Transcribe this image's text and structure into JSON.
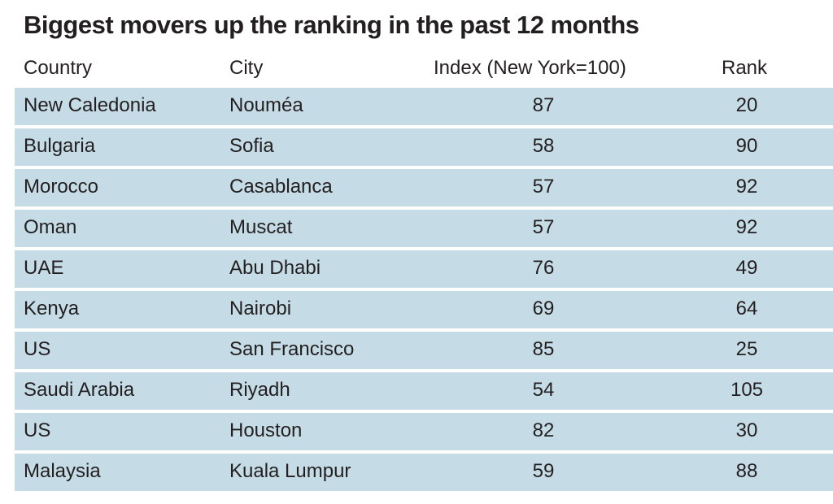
{
  "title": "Biggest movers up the ranking in the past 12 months",
  "columns": {
    "country": "Country",
    "city": "City",
    "index": "Index (New York=100)",
    "rank": "Rank"
  },
  "rows": [
    {
      "country": "New Caledonia",
      "city": "Nouméa",
      "index": "87",
      "rank": "20"
    },
    {
      "country": "Bulgaria",
      "city": "Sofia",
      "index": "58",
      "rank": "90"
    },
    {
      "country": "Morocco",
      "city": "Casablanca",
      "index": "57",
      "rank": "92"
    },
    {
      "country": "Oman",
      "city": "Muscat",
      "index": "57",
      "rank": "92"
    },
    {
      "country": "UAE",
      "city": "Abu Dhabi",
      "index": "76",
      "rank": "49"
    },
    {
      "country": "Kenya",
      "city": "Nairobi",
      "index": "69",
      "rank": "64"
    },
    {
      "country": "US",
      "city": "San Francisco",
      "index": "85",
      "rank": "25"
    },
    {
      "country": "Saudi Arabia",
      "city": "Riyadh",
      "index": "54",
      "rank": "105"
    },
    {
      "country": "US",
      "city": "Houston",
      "index": "82",
      "rank": "30"
    },
    {
      "country": "Malaysia",
      "city": "Kuala Lumpur",
      "index": "59",
      "rank": "88"
    }
  ],
  "colors": {
    "row_background": "#c5dce6",
    "text": "#231f20"
  }
}
